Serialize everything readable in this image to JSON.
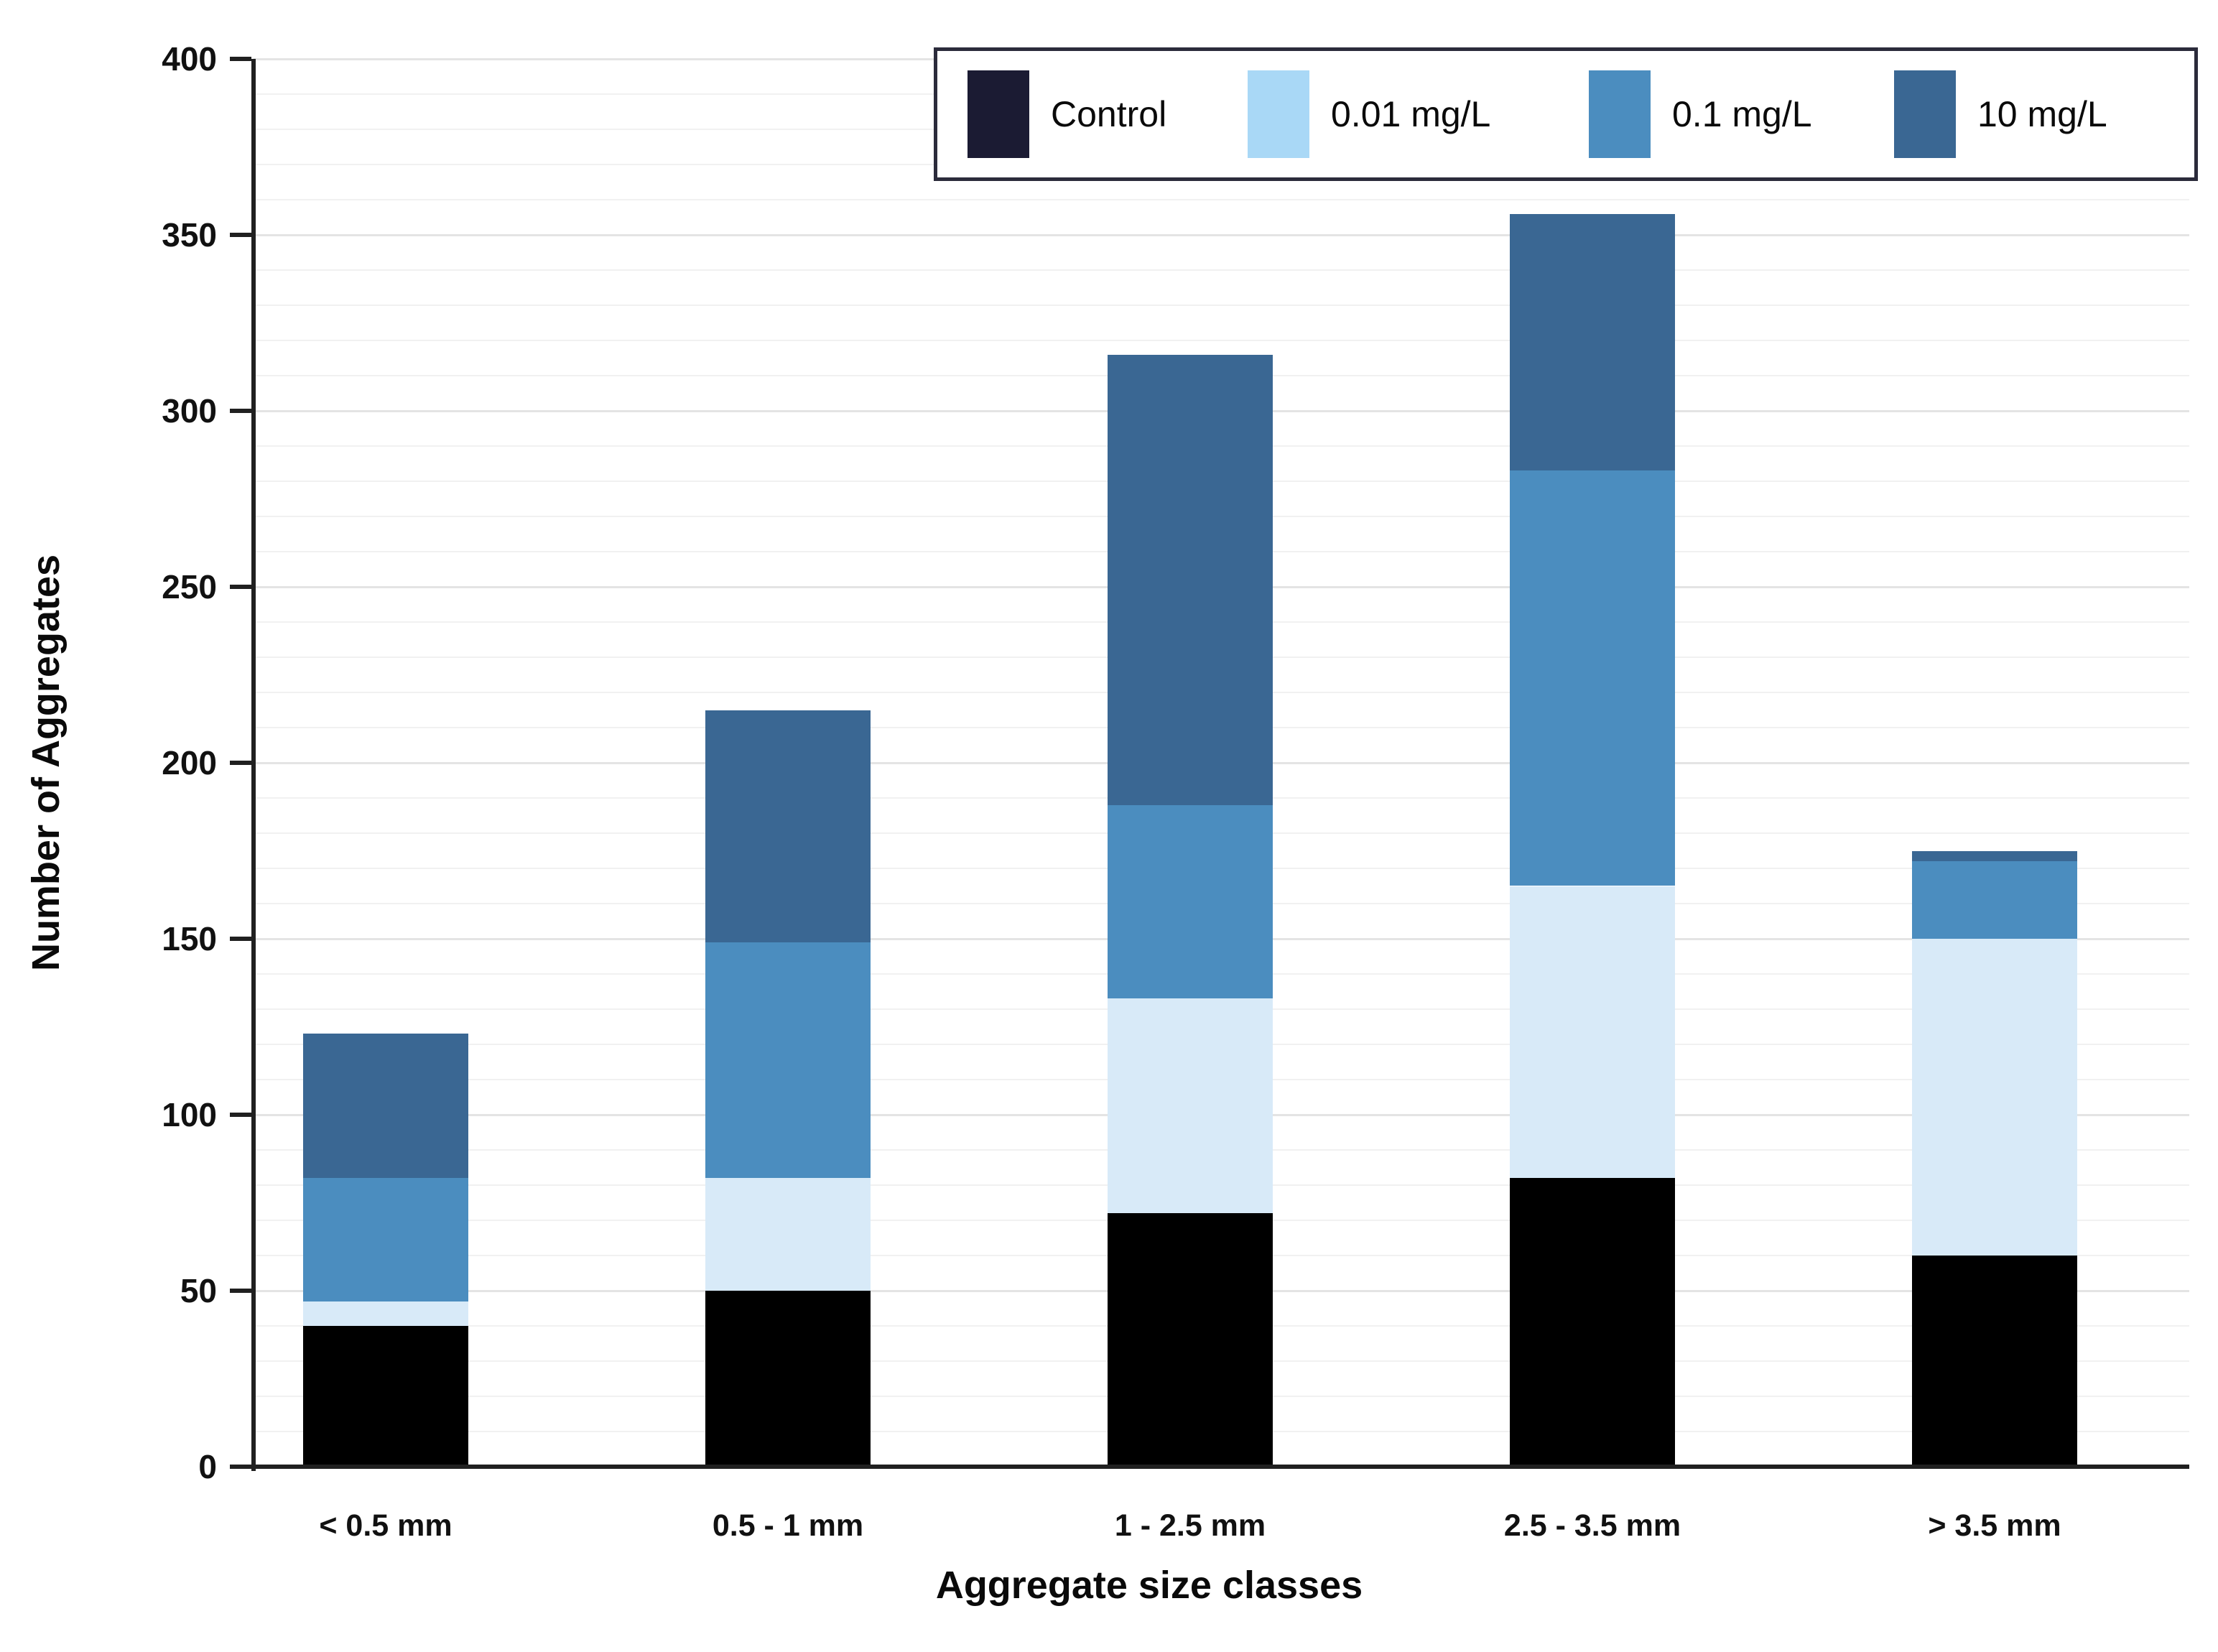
{
  "chart_data": {
    "type": "bar",
    "stacked": true,
    "title": "",
    "categories": [
      "< 0.5 mm",
      "0.5 - 1 mm",
      "1 - 2.5 mm",
      "2.5 - 3.5 mm",
      "> 3.5 mm"
    ],
    "series": [
      {
        "name": "Control",
        "values": [
          40,
          50,
          72,
          82,
          60
        ],
        "color": "#000000",
        "swatch": "#1b1b33"
      },
      {
        "name": "0.01 mg/L",
        "values": [
          7,
          32,
          61,
          83,
          90
        ],
        "color": "#d8eaf8",
        "swatch": "#a9d8f6"
      },
      {
        "name": "0.1 mg/L",
        "values": [
          35,
          67,
          55,
          118,
          22
        ],
        "color": "#4b8dbf",
        "swatch": "#4b8dbf"
      },
      {
        "name": "10 mg/L",
        "values": [
          41,
          66,
          128,
          73,
          3
        ],
        "color": "#3a6793",
        "swatch": "#3a6793"
      }
    ],
    "bar_totals": [
      123,
      215,
      316,
      356,
      175
    ],
    "xlabel": "Aggregate size classes",
    "ylabel": "Number of Aggregates",
    "ylim": [
      0,
      400
    ],
    "ytick_interval": 50,
    "minor_gridline_interval": 10,
    "y_ticks": [
      {
        "v": 400,
        "label": "400"
      },
      {
        "v": 350,
        "label": "350"
      },
      {
        "v": 300,
        "label": "300"
      },
      {
        "v": 250,
        "label": "250"
      },
      {
        "v": 200,
        "label": "200"
      },
      {
        "v": 150,
        "label": "150"
      },
      {
        "v": 100,
        "label": "100"
      },
      {
        "v": 50,
        "label": "50"
      },
      {
        "v": 0,
        "label": "0"
      }
    ],
    "grid": true,
    "legend_position": "top-right"
  }
}
